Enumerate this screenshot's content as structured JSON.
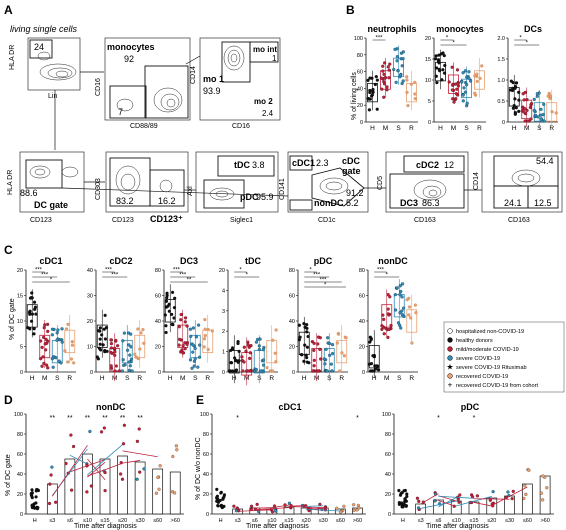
{
  "panelA": {
    "letter": "A",
    "title": "living single cells",
    "row1": [
      {
        "gate_value": "24",
        "ylabel": "HLA DR",
        "xlabel": "Lin"
      },
      {
        "gate_label": "monocytes",
        "gate_value": "92",
        "gate_value2": "7",
        "ylabel": "CD16",
        "xlabel": "CD88/89"
      },
      {
        "g1_label": "mo 1",
        "g1_value": "93.9",
        "g2_label": "mo int",
        "g2_value": "1",
        "g3_label": "mo 2",
        "g3_value": "2.4",
        "ylabel": "CD14",
        "xlabel": "CD16"
      }
    ],
    "row2": [
      {
        "gate_value": "88.6",
        "gate_label": "DC gate",
        "ylabel": "HLA DR",
        "xlabel": "CD123"
      },
      {
        "v1": "83.2",
        "v2": "16.2",
        "gate_label": "CD123⁺",
        "ylabel": "CD303",
        "xlabel": "CD123"
      },
      {
        "tdc_label": "tDC",
        "tdc_value": "3.8",
        "pdc_label": "pDC",
        "pdc_value": "95.9",
        "ylabel": "Axl",
        "xlabel": "Siglec1"
      },
      {
        "cdc1_label": "cDC1",
        "cdc1_value": "2.3",
        "cdc_label": "cDC\ngate",
        "cdc_value": "91.2",
        "non_label": "nonDC",
        "non_value": "5.2",
        "ylabel": "CD141",
        "xlabel": "CD1c"
      },
      {
        "cdc2_label": "cDC2",
        "cdc2_value": "12",
        "dc3_label": "DC3",
        "dc3_value": "86.3",
        "ylabel": "CD5",
        "xlabel": "CD163"
      },
      {
        "top_value": "54.4",
        "bl_value": "24.1",
        "br_value": "12.5",
        "ylabel": "CD14",
        "xlabel": "CD163"
      }
    ]
  },
  "panelB": {
    "letter": "B",
    "ylabel": "% of living cells",
    "groups": [
      "H",
      "M",
      "S",
      "R"
    ],
    "charts": [
      {
        "title": "neutrophils",
        "ticks": [
          "0",
          "20",
          "40",
          "60",
          "80",
          "100"
        ],
        "sig": "***"
      },
      {
        "title": "monocytes",
        "ticks": [
          "0",
          "5",
          "10",
          "15",
          "20"
        ],
        "sig1": "*",
        "sig2": "*"
      },
      {
        "title": "DCs",
        "ticks": [
          "0",
          "0.5",
          "1.0",
          "1.5",
          "2.0"
        ],
        "sig1": "*",
        "sig2": "*"
      }
    ]
  },
  "panelC": {
    "letter": "C",
    "ylabel": "% of DC gate",
    "groups": [
      "H",
      "M",
      "S",
      "R"
    ],
    "charts": [
      {
        "title": "cDC1",
        "ticks": [
          "0",
          "5",
          "10",
          "15",
          "20"
        ],
        "s1": "***",
        "s2": "***",
        "s3": "*"
      },
      {
        "title": "cDC2",
        "ticks": [
          "0",
          "10",
          "20",
          "30",
          "40"
        ],
        "s1": "***",
        "s2": "***"
      },
      {
        "title": "DC3",
        "ticks": [
          "0",
          "20",
          "40",
          "60",
          "80"
        ],
        "s1": "***",
        "s2": "***",
        "s3": "**"
      },
      {
        "title": "tDC",
        "ticks": [
          "0",
          "1",
          "2",
          "3",
          "4",
          "20"
        ],
        "s1": "*",
        "s2": "*"
      },
      {
        "title": "pDC",
        "ticks": [
          "0",
          "20",
          "40",
          "60",
          "80"
        ],
        "s1": "*",
        "s2": "***",
        "s3": "***",
        "s4": "*"
      },
      {
        "title": "nonDC",
        "ticks": [
          "0",
          "20",
          "40",
          "60",
          "80"
        ],
        "s1": "***",
        "s2": "*"
      }
    ]
  },
  "legend": [
    {
      "label": "hospitalized non-COVID-19",
      "marker": "open-circle"
    },
    {
      "label": "healthy donors",
      "marker": "black-circle"
    },
    {
      "label": "mild/moderate COVID-19",
      "marker": "red-circle"
    },
    {
      "label": "severe COVID-19",
      "marker": "blue-circle"
    },
    {
      "label": "severe COVID-19 Rituximab",
      "marker": "star"
    },
    {
      "label": "recovered COVID-19",
      "marker": "orange-circle"
    },
    {
      "label": "recovered COVID-19 from cohort",
      "marker": "plus"
    }
  ],
  "panelD": {
    "letter": "D",
    "title": "nonDC",
    "ylabel": "% of DC gate",
    "xlabel": "Time after diagnosis",
    "ticks": [
      "0",
      "20",
      "40",
      "60",
      "80",
      "100"
    ],
    "cats": [
      "H",
      "≤3",
      "≤6",
      "≤10",
      "≤15",
      "≤20",
      "≤30",
      "≤60",
      ">60"
    ],
    "sig": [
      "**",
      "**",
      "**",
      "**",
      "**",
      "**"
    ],
    "bars": [
      null,
      30,
      55,
      60,
      55,
      58,
      52,
      45,
      42
    ]
  },
  "panelE": {
    "letter": "E",
    "ylabel": "% of DC w/o nonDC",
    "xlabel": "Time after diagnosis",
    "cats": [
      "H",
      "≤3",
      "≤6",
      "≤10",
      "≤15",
      "≤20",
      "≤30",
      "≤60",
      ">60"
    ],
    "charts": [
      {
        "title": "cDC1",
        "ticks": [
          "0",
          "20",
          "40",
          "60",
          "80",
          "100"
        ],
        "sig1": "*",
        "sig2": "*",
        "bars": [
          null,
          5,
          6,
          5,
          7,
          6,
          6,
          5,
          6
        ]
      },
      {
        "title": "pDC",
        "ticks": [
          "0",
          "20",
          "40",
          "60",
          "80",
          "100"
        ],
        "sig1": "*",
        "sig2": "*",
        "bars": [
          null,
          10,
          14,
          13,
          12,
          16,
          18,
          30,
          38
        ]
      }
    ]
  },
  "colors": {
    "healthy": "#111111",
    "mild": "#c0203a",
    "severe": "#2e8bb8",
    "recovered": "#e9a070",
    "contour": "#222222"
  }
}
